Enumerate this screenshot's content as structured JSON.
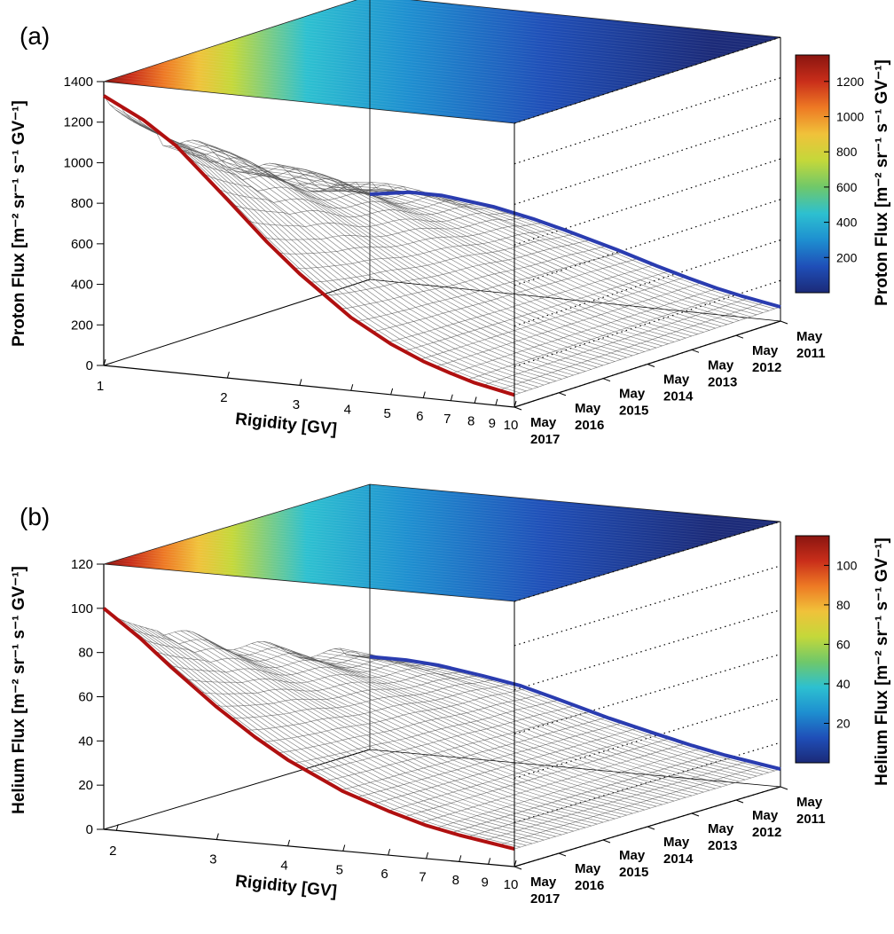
{
  "colors": {
    "series_2017": "#b01010",
    "series_2011": "#2a3cb0",
    "mesh": "#555555",
    "colormap": [
      "#1b2a78",
      "#1f4fb8",
      "#1e8fd0",
      "#2dc0d0",
      "#6fc86a",
      "#c4d83a",
      "#f0c23a",
      "#ee7a24",
      "#c92e1a",
      "#8a1510"
    ]
  },
  "chart_data": [
    {
      "panel_label": "(a)",
      "type": "surface",
      "title": "",
      "zlabel": "Proton Flux [m⁻² sr⁻¹ s⁻¹ GV⁻¹]",
      "xlabel": "Rigidity [GV]",
      "ylabel": "",
      "colorbar_label": "Proton Flux [m⁻² sr⁻¹ s⁻¹ GV⁻¹]",
      "x_scale": "log",
      "x_range": [
        1,
        10
      ],
      "x_ticks": [
        1,
        2,
        3,
        4,
        5,
        6,
        7,
        8,
        9,
        10
      ],
      "z_range": [
        0,
        1400
      ],
      "z_ticks": [
        0,
        200,
        400,
        600,
        800,
        1000,
        1200,
        1400
      ],
      "colorbar_range": [
        0,
        1350
      ],
      "colorbar_ticks": [
        200,
        400,
        600,
        800,
        1000,
        1200
      ],
      "date_labels": [
        [
          "May",
          "2011"
        ],
        [
          "May",
          "2012"
        ],
        [
          "May",
          "2013"
        ],
        [
          "May",
          "2014"
        ],
        [
          "May",
          "2015"
        ],
        [
          "May",
          "2016"
        ],
        [
          "May",
          "2017"
        ]
      ],
      "series": [
        {
          "name": "May 2017",
          "x": [
            1.0,
            1.25,
            1.5,
            2,
            2.5,
            3,
            4,
            5,
            6,
            7,
            8,
            10
          ],
          "values": [
            1330,
            1230,
            1120,
            880,
            690,
            550,
            360,
            250,
            180,
            135,
            100,
            60
          ]
        },
        {
          "name": "May 2011",
          "x": [
            1.0,
            1.25,
            1.5,
            2,
            2.5,
            3,
            4,
            5,
            6,
            7,
            8,
            10
          ],
          "values": [
            420,
            450,
            450,
            420,
            380,
            340,
            270,
            210,
            165,
            130,
            105,
            70
          ]
        }
      ]
    },
    {
      "panel_label": "(b)",
      "type": "surface",
      "title": "",
      "zlabel": "Helium Flux [m⁻² sr⁻¹ s⁻¹ GV⁻¹]",
      "xlabel": "Rigidity [GV]",
      "ylabel": "",
      "colorbar_label": "Helium Flux [m⁻² sr⁻¹ s⁻¹ GV⁻¹]",
      "x_scale": "log",
      "x_range": [
        1.9,
        10
      ],
      "x_ticks": [
        2,
        3,
        4,
        5,
        6,
        7,
        8,
        9,
        10
      ],
      "z_range": [
        0,
        120
      ],
      "z_ticks": [
        0,
        20,
        40,
        60,
        80,
        100,
        120
      ],
      "colorbar_range": [
        0,
        115
      ],
      "colorbar_ticks": [
        20,
        40,
        60,
        80,
        100
      ],
      "date_labels": [
        [
          "May",
          "2011"
        ],
        [
          "May",
          "2012"
        ],
        [
          "May",
          "2013"
        ],
        [
          "May",
          "2014"
        ],
        [
          "May",
          "2015"
        ],
        [
          "May",
          "2016"
        ],
        [
          "May",
          "2017"
        ]
      ],
      "series": [
        {
          "name": "May 2017",
          "x": [
            1.9,
            2.2,
            2.5,
            3,
            3.5,
            4,
            5,
            6,
            7,
            8,
            10
          ],
          "values": [
            100,
            88,
            76,
            60,
            48,
            39,
            27,
            20,
            15,
            12,
            8
          ]
        },
        {
          "name": "May 2011",
          "x": [
            1.9,
            2.2,
            2.5,
            3,
            3.5,
            4,
            5,
            6,
            7,
            8,
            10
          ],
          "values": [
            42,
            42,
            41,
            38,
            35,
            31,
            24,
            19,
            15,
            12,
            8
          ]
        }
      ]
    }
  ]
}
